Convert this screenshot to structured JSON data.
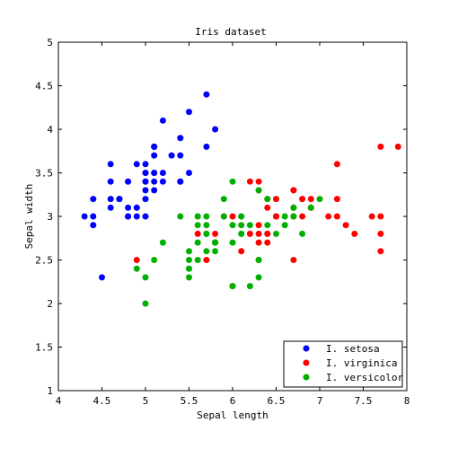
{
  "chart_data": {
    "type": "scatter",
    "title": "Iris dataset",
    "xlabel": "Sepal length",
    "ylabel": "Sepal width",
    "xlim": [
      4,
      8
    ],
    "ylim": [
      1,
      5
    ],
    "xticks": [
      "4",
      "4.5",
      "5",
      "5.5",
      "6",
      "6.5",
      "7",
      "7.5",
      "8"
    ],
    "yticks": [
      "1",
      "1.5",
      "2",
      "2.5",
      "3",
      "3.5",
      "4",
      "4.5",
      "5"
    ],
    "grid": false,
    "legend_position": "bottom-right",
    "series": [
      {
        "name": "I. setosa",
        "color": "#0000ff",
        "points": [
          [
            5.1,
            3.5
          ],
          [
            4.9,
            3.0
          ],
          [
            4.7,
            3.2
          ],
          [
            4.6,
            3.1
          ],
          [
            5.0,
            3.6
          ],
          [
            5.4,
            3.9
          ],
          [
            4.6,
            3.4
          ],
          [
            5.0,
            3.4
          ],
          [
            4.4,
            2.9
          ],
          [
            4.9,
            3.1
          ],
          [
            5.4,
            3.7
          ],
          [
            4.8,
            3.4
          ],
          [
            4.8,
            3.0
          ],
          [
            4.3,
            3.0
          ],
          [
            5.8,
            4.0
          ],
          [
            5.7,
            4.4
          ],
          [
            5.4,
            3.9
          ],
          [
            5.1,
            3.5
          ],
          [
            5.7,
            3.8
          ],
          [
            5.1,
            3.8
          ],
          [
            5.4,
            3.4
          ],
          [
            5.1,
            3.7
          ],
          [
            4.6,
            3.6
          ],
          [
            5.1,
            3.3
          ],
          [
            4.8,
            3.4
          ],
          [
            5.0,
            3.0
          ],
          [
            5.0,
            3.4
          ],
          [
            5.2,
            3.5
          ],
          [
            5.2,
            3.4
          ],
          [
            4.7,
            3.2
          ],
          [
            4.8,
            3.1
          ],
          [
            5.4,
            3.4
          ],
          [
            5.2,
            4.1
          ],
          [
            5.5,
            4.2
          ],
          [
            4.9,
            3.1
          ],
          [
            5.0,
            3.2
          ],
          [
            5.5,
            3.5
          ],
          [
            4.9,
            3.6
          ],
          [
            4.4,
            3.0
          ],
          [
            5.1,
            3.4
          ],
          [
            5.0,
            3.5
          ],
          [
            4.5,
            2.3
          ],
          [
            4.4,
            3.2
          ],
          [
            5.0,
            3.5
          ],
          [
            5.1,
            3.8
          ],
          [
            4.8,
            3.0
          ],
          [
            5.1,
            3.8
          ],
          [
            4.6,
            3.2
          ],
          [
            5.3,
            3.7
          ],
          [
            5.0,
            3.3
          ]
        ]
      },
      {
        "name": "I. virginica",
        "color": "#ff0000",
        "points": [
          [
            6.3,
            3.3
          ],
          [
            5.8,
            2.7
          ],
          [
            7.1,
            3.0
          ],
          [
            6.3,
            2.9
          ],
          [
            6.5,
            3.0
          ],
          [
            7.6,
            3.0
          ],
          [
            4.9,
            2.5
          ],
          [
            7.3,
            2.9
          ],
          [
            6.7,
            2.5
          ],
          [
            7.2,
            3.6
          ],
          [
            6.5,
            3.2
          ],
          [
            6.4,
            2.7
          ],
          [
            6.8,
            3.0
          ],
          [
            5.7,
            2.5
          ],
          [
            5.8,
            2.8
          ],
          [
            6.4,
            3.2
          ],
          [
            6.5,
            3.0
          ],
          [
            7.7,
            3.8
          ],
          [
            7.7,
            2.6
          ],
          [
            6.0,
            2.2
          ],
          [
            6.9,
            3.2
          ],
          [
            5.6,
            2.8
          ],
          [
            7.7,
            2.8
          ],
          [
            6.3,
            2.7
          ],
          [
            6.7,
            3.3
          ],
          [
            7.2,
            3.2
          ],
          [
            6.2,
            2.8
          ],
          [
            6.1,
            3.0
          ],
          [
            6.4,
            2.8
          ],
          [
            7.2,
            3.0
          ],
          [
            7.4,
            2.8
          ],
          [
            7.9,
            3.8
          ],
          [
            6.4,
            2.8
          ],
          [
            6.3,
            2.8
          ],
          [
            6.1,
            2.6
          ],
          [
            7.7,
            3.0
          ],
          [
            6.3,
            3.4
          ],
          [
            6.4,
            3.1
          ],
          [
            6.0,
            3.0
          ],
          [
            6.9,
            3.1
          ],
          [
            6.7,
            3.1
          ],
          [
            6.9,
            3.1
          ],
          [
            5.8,
            2.7
          ],
          [
            6.8,
            3.2
          ],
          [
            6.7,
            3.3
          ],
          [
            6.7,
            3.0
          ],
          [
            6.3,
            2.5
          ],
          [
            6.5,
            3.0
          ],
          [
            6.2,
            3.4
          ],
          [
            5.9,
            3.0
          ]
        ]
      },
      {
        "name": "I. versicolor",
        "color": "#00b000",
        "points": [
          [
            7.0,
            3.2
          ],
          [
            6.4,
            3.2
          ],
          [
            6.9,
            3.1
          ],
          [
            5.5,
            2.3
          ],
          [
            6.5,
            2.8
          ],
          [
            5.7,
            2.8
          ],
          [
            6.3,
            3.3
          ],
          [
            4.9,
            2.4
          ],
          [
            6.6,
            2.9
          ],
          [
            5.2,
            2.7
          ],
          [
            5.0,
            2.0
          ],
          [
            5.9,
            3.0
          ],
          [
            6.0,
            2.2
          ],
          [
            6.1,
            2.9
          ],
          [
            5.6,
            2.9
          ],
          [
            6.7,
            3.1
          ],
          [
            5.6,
            3.0
          ],
          [
            5.8,
            2.7
          ],
          [
            6.2,
            2.2
          ],
          [
            5.6,
            2.5
          ],
          [
            5.9,
            3.2
          ],
          [
            6.1,
            2.8
          ],
          [
            6.3,
            2.5
          ],
          [
            6.1,
            2.8
          ],
          [
            6.4,
            2.9
          ],
          [
            6.6,
            3.0
          ],
          [
            6.8,
            2.8
          ],
          [
            6.7,
            3.0
          ],
          [
            6.0,
            2.9
          ],
          [
            5.7,
            2.6
          ],
          [
            5.5,
            2.4
          ],
          [
            5.5,
            2.4
          ],
          [
            5.8,
            2.7
          ],
          [
            6.0,
            2.7
          ],
          [
            5.4,
            3.0
          ],
          [
            6.0,
            3.4
          ],
          [
            6.7,
            3.1
          ],
          [
            6.3,
            2.3
          ],
          [
            5.6,
            3.0
          ],
          [
            5.5,
            2.5
          ],
          [
            5.5,
            2.6
          ],
          [
            6.1,
            3.0
          ],
          [
            5.8,
            2.6
          ],
          [
            5.0,
            2.3
          ],
          [
            5.6,
            2.7
          ],
          [
            5.7,
            3.0
          ],
          [
            5.7,
            2.9
          ],
          [
            6.2,
            2.9
          ],
          [
            5.1,
            2.5
          ],
          [
            5.7,
            2.8
          ]
        ]
      }
    ]
  }
}
